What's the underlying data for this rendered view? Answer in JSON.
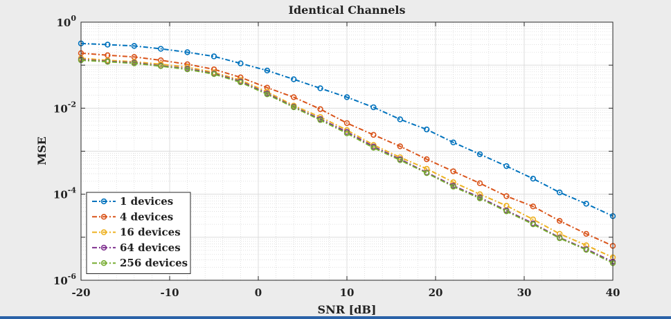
{
  "chart_data": {
    "type": "line",
    "title": "Identical Channels",
    "xlabel": "SNR [dB]",
    "ylabel": "MSE",
    "xlim": [
      -20,
      40
    ],
    "ylim": [
      1e-06,
      1
    ],
    "yscale": "log",
    "grid": true,
    "legend_position": "bottom-left",
    "x_ticks": [
      -20,
      -10,
      0,
      10,
      20,
      30,
      40
    ],
    "y_tick_labels": [
      {
        "value": 1e-06,
        "base": "10",
        "exp": "-6"
      },
      {
        "value": 0.0001,
        "base": "10",
        "exp": "-4"
      },
      {
        "value": 0.01,
        "base": "10",
        "exp": "-2"
      },
      {
        "value": 1,
        "base": "10",
        "exp": "0"
      }
    ],
    "x": [
      -20,
      -17,
      -14,
      -11,
      -8,
      -5,
      -2,
      1,
      4,
      7,
      10,
      13,
      16,
      19,
      22,
      25,
      28,
      31,
      34,
      37,
      40
    ],
    "series": [
      {
        "name": "1 devices",
        "color": "#0072BD",
        "values": [
          0.32,
          0.3,
          0.28,
          0.24,
          0.2,
          0.16,
          0.11,
          0.075,
          0.047,
          0.029,
          0.018,
          0.0105,
          0.0055,
          0.0032,
          0.0016,
          0.00085,
          0.00045,
          0.00023,
          0.00011,
          6e-05,
          3.1e-05
        ]
      },
      {
        "name": "4 devices",
        "color": "#D95319",
        "values": [
          0.19,
          0.17,
          0.155,
          0.13,
          0.105,
          0.08,
          0.052,
          0.03,
          0.018,
          0.0095,
          0.0045,
          0.0024,
          0.0013,
          0.00065,
          0.00034,
          0.00018,
          9e-05,
          5.2e-05,
          2.4e-05,
          1.2e-05,
          6.3e-06
        ]
      },
      {
        "name": "16 devices",
        "color": "#EDB120",
        "values": [
          0.145,
          0.13,
          0.12,
          0.105,
          0.09,
          0.068,
          0.045,
          0.024,
          0.0115,
          0.0062,
          0.0031,
          0.0014,
          0.00072,
          0.00039,
          0.00019,
          0.0001,
          5.4e-05,
          2.6e-05,
          1.2e-05,
          6.5e-06,
          3.4e-06
        ]
      },
      {
        "name": "64 devices",
        "color": "#7E2F8E",
        "values": [
          0.135,
          0.123,
          0.114,
          0.097,
          0.083,
          0.064,
          0.042,
          0.022,
          0.0108,
          0.0056,
          0.0028,
          0.00128,
          0.00065,
          0.00032,
          0.000158,
          8.4e-05,
          4.2e-05,
          2.1e-05,
          9.8e-06,
          5.3e-06,
          2.7e-06
        ]
      },
      {
        "name": "256 devices",
        "color": "#77AC30",
        "values": [
          0.13,
          0.12,
          0.11,
          0.095,
          0.08,
          0.062,
          0.04,
          0.021,
          0.0105,
          0.0053,
          0.0026,
          0.0012,
          0.00062,
          0.00031,
          0.00015,
          8e-05,
          4e-05,
          2e-05,
          9.5e-06,
          5.1e-06,
          2.5e-06
        ]
      }
    ]
  }
}
